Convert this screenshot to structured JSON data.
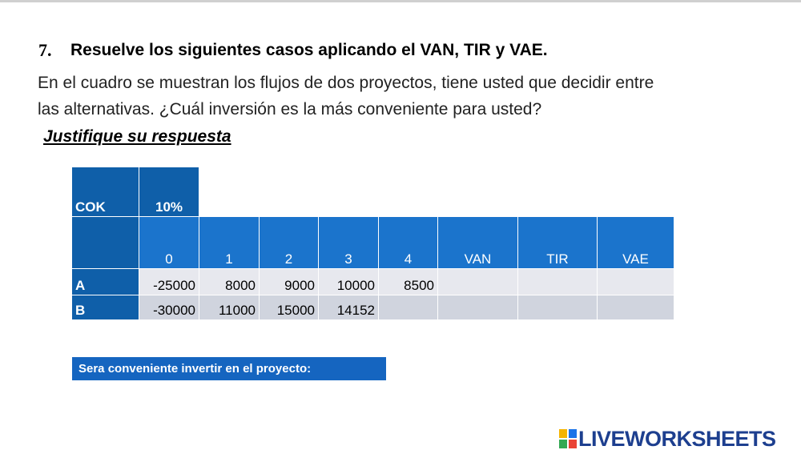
{
  "heading": {
    "number": "7.",
    "text": "Resuelve los siguientes casos aplicando el VAN, TIR y VAE."
  },
  "paragraph": [
    "En el cuadro se muestran los flujos de dos proyectos, tiene usted que decidir entre",
    "las alternativas. ¿Cuál inversión es la más conveniente para usted?"
  ],
  "instruction": "Justifique su respuesta",
  "table": {
    "cok_label": "COK",
    "cok_value": "10%",
    "columns": [
      "0",
      "1",
      "2",
      "3",
      "4",
      "VAN",
      "TIR",
      "VAE"
    ],
    "rows": [
      {
        "label": "A",
        "values": [
          -25000,
          8000,
          9000,
          10000,
          8500
        ]
      },
      {
        "label": "B",
        "values": [
          -30000,
          11000,
          15000,
          14152
        ]
      }
    ]
  },
  "answer_bar": "Sera conveniente invertir en el proyecto:",
  "brand": "LIVEWORKSHEETS"
}
